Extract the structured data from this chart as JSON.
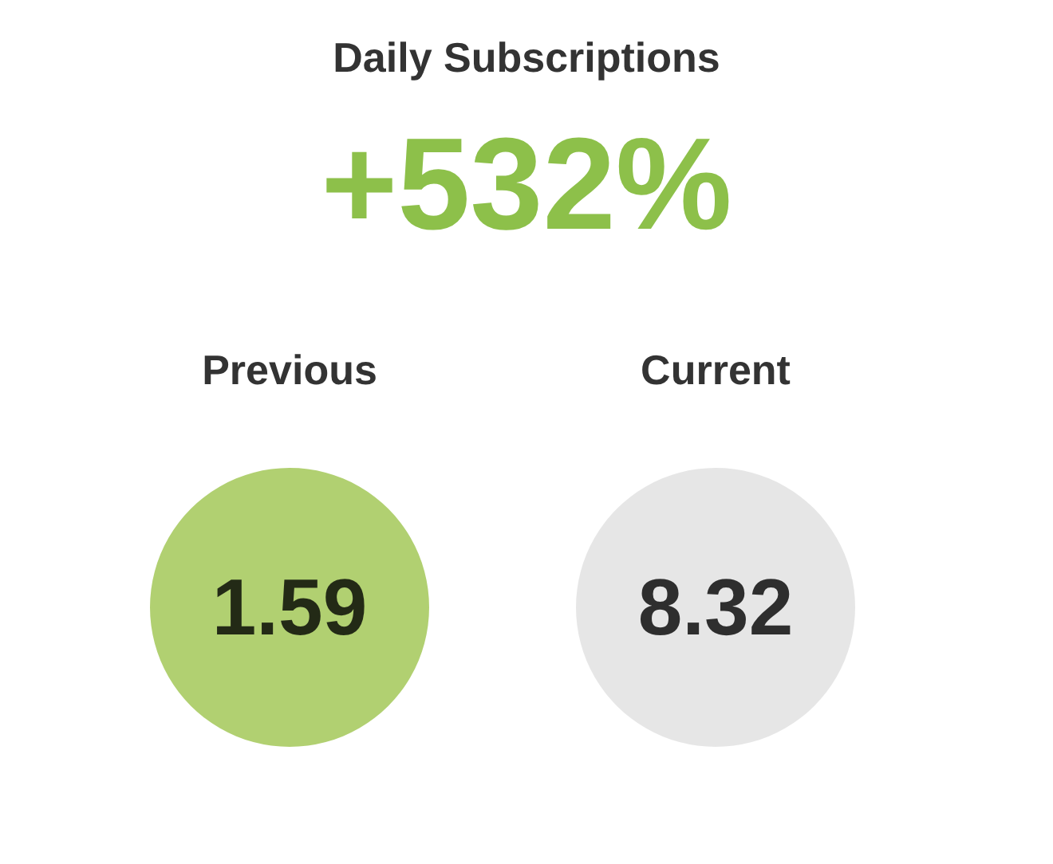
{
  "chart_data": {
    "type": "other",
    "title": "Daily Subscriptions",
    "subtitle": "+532%",
    "categories": [
      "Previous",
      "Current"
    ],
    "values": [
      1.59,
      8.32
    ],
    "colors": [
      "#9dc44d",
      "#e0e0e0"
    ],
    "data_labels": true
  }
}
